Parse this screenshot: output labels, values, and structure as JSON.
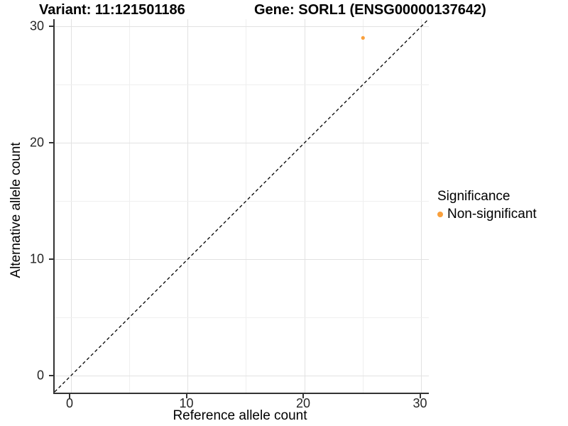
{
  "header": {
    "variant_title": "Variant: 11:121501186",
    "gene_title": "Gene: SORL1 (ENSG00000137642)"
  },
  "chart_data": {
    "type": "scatter",
    "title": "Variant: 11:121501186 / Gene: SORL1 (ENSG00000137642)",
    "xlabel": "Reference allele count",
    "ylabel": "Alternative allele count",
    "xlim": [
      -1.4,
      30.6
    ],
    "ylim": [
      -1.6,
      30.6
    ],
    "x_ticks": [
      0,
      10,
      20,
      30
    ],
    "y_ticks": [
      0,
      10,
      20,
      30
    ],
    "grid": true,
    "grid_minor": true,
    "series": [
      {
        "name": "Non-significant",
        "color": "#F9A03C",
        "points": [
          {
            "x": 25,
            "y": 29
          }
        ]
      }
    ],
    "reference_line": {
      "equation": "y = x",
      "style": "dashed",
      "color": "#000000"
    },
    "legend": {
      "title": "Significance",
      "position": "right",
      "items": [
        {
          "label": "Non-significant",
          "color": "#F9A03C"
        }
      ]
    }
  },
  "colors": {
    "point": "#F9A03C",
    "grid_major": "#e2e2e2",
    "grid_minor": "#efefef",
    "axis_line": "#333333"
  }
}
